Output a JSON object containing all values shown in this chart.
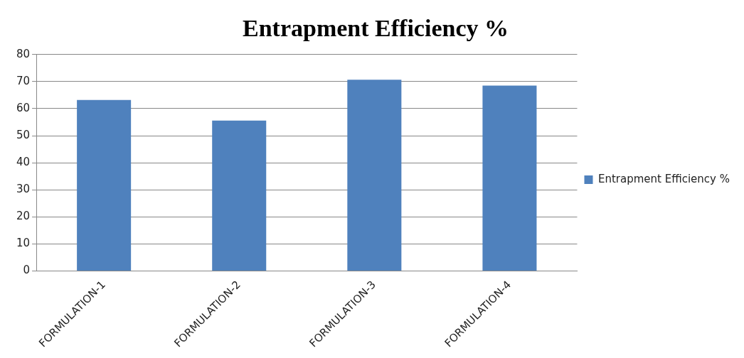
{
  "chart_data": {
    "type": "bar",
    "title": "Entrapment Efficiency %",
    "categories": [
      "FORMULATION-1",
      "FORMULATION-2",
      "FORMULATION-3",
      "FORMULATION-4"
    ],
    "series": [
      {
        "name": "Entrapment Efficiency %",
        "color": "#4f81bd",
        "values": [
          63.2,
          55.6,
          70.7,
          68.5
        ]
      }
    ],
    "ylim": [
      0,
      80
    ],
    "yticks": [
      0,
      10,
      20,
      30,
      40,
      50,
      60,
      70,
      80
    ],
    "grid": "y",
    "legend": "right"
  }
}
